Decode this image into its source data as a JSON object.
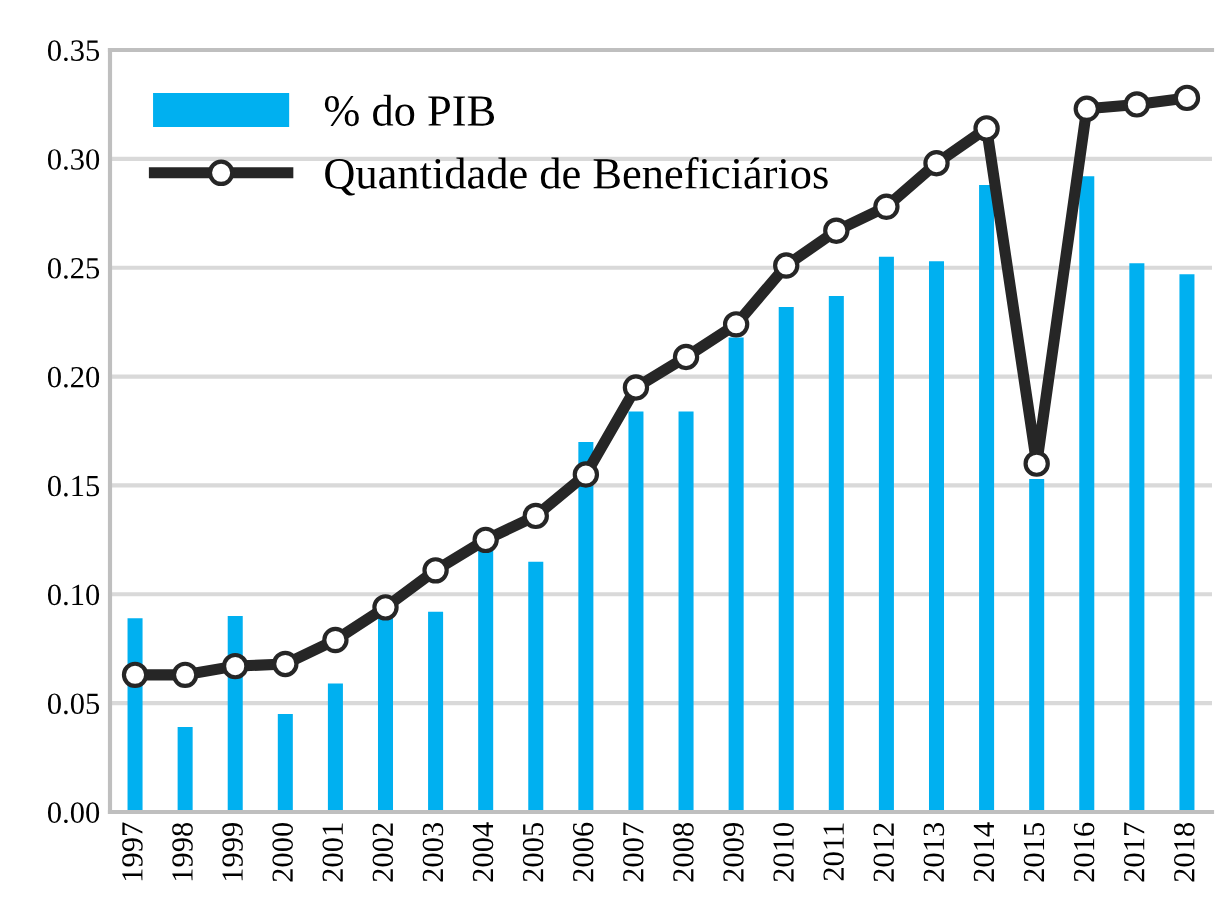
{
  "chart_data": {
    "type": "bar",
    "categories": [
      "1997",
      "1998",
      "1999",
      "2000",
      "2001",
      "2002",
      "2003",
      "2004",
      "2005",
      "2006",
      "2007",
      "2008",
      "2009",
      "2010",
      "2011",
      "2012",
      "2013",
      "2014",
      "2015",
      "2016",
      "2017",
      "2018"
    ],
    "series": [
      {
        "name": "% do PIB",
        "color": "#00b0f0",
        "values": [
          0.089,
          0.039,
          0.09,
          0.045,
          0.059,
          0.091,
          0.092,
          0.121,
          0.115,
          0.17,
          0.184,
          0.184,
          0.218,
          0.232,
          0.237,
          0.255,
          0.253,
          0.288,
          0.153,
          0.292,
          0.252,
          0.247
        ]
      },
      {
        "name": "Quantidade de Beneficiários",
        "type": "line",
        "color": "#262626",
        "marker": "circle",
        "values": [
          0.063,
          0.063,
          0.067,
          0.068,
          0.079,
          0.094,
          0.111,
          0.125,
          0.136,
          0.155,
          0.195,
          0.209,
          0.224,
          0.251,
          0.267,
          0.278,
          0.298,
          0.314,
          0.16,
          0.323,
          0.325,
          0.328
        ]
      }
    ],
    "ylim": [
      0,
      0.35
    ],
    "yticks": [
      {
        "value": 0,
        "label": "0.00"
      },
      {
        "value": 0.05,
        "label": "0.05"
      },
      {
        "value": 0.1,
        "label": "0.10"
      },
      {
        "value": 0.15,
        "label": "0.15"
      },
      {
        "value": 0.2,
        "label": "0.20"
      },
      {
        "value": 0.25,
        "label": "0.25"
      },
      {
        "value": 0.3,
        "label": "0.30"
      },
      {
        "value": 0.35,
        "label": "0.35"
      }
    ],
    "grid": "y",
    "legend": "top left"
  }
}
